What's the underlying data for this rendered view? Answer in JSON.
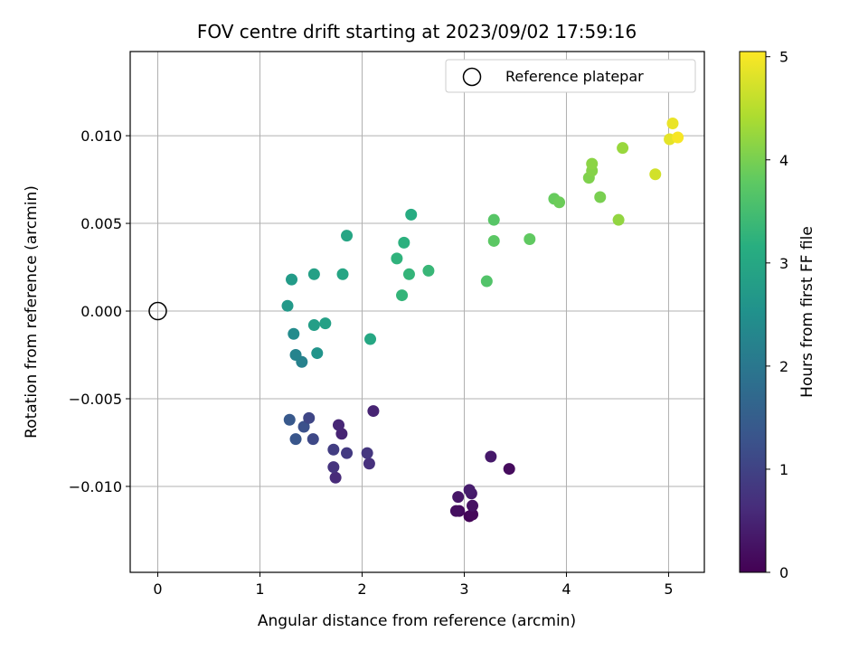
{
  "chart_data": {
    "type": "scatter",
    "title": "FOV centre drift starting at 2023/09/02 17:59:16",
    "xlabel": "Angular distance from reference (arcmin)",
    "ylabel": "Rotation from reference (arcmin)",
    "xlim": [
      -0.27,
      5.35
    ],
    "ylim": [
      -0.0149,
      0.0148
    ],
    "xticks": [
      0,
      1,
      2,
      3,
      4,
      5
    ],
    "xtick_labels": [
      "0",
      "1",
      "2",
      "3",
      "4",
      "5"
    ],
    "yticks": [
      -0.01,
      -0.005,
      0.0,
      0.005,
      0.01
    ],
    "ytick_labels": [
      "−0.010",
      "−0.005",
      "0.000",
      "0.005",
      "0.010"
    ],
    "grid": true,
    "legend": {
      "placement": "top-right",
      "entries": [
        {
          "label": "Reference platepar",
          "marker": "open-circle"
        }
      ]
    },
    "reference_point": {
      "x": 0.0,
      "y": 0.0
    },
    "colorbar": {
      "label": "Hours from first FF file",
      "colormap": "viridis",
      "min": 0,
      "max": 5.05,
      "ticks": [
        0,
        1,
        2,
        3,
        4,
        5
      ],
      "tick_labels": [
        "0",
        "1",
        "2",
        "3",
        "4",
        "5"
      ]
    },
    "points": [
      {
        "x": 3.05,
        "y": -0.0117,
        "t": 0.05
      },
      {
        "x": 3.08,
        "y": -0.0116,
        "t": 0.1
      },
      {
        "x": 2.95,
        "y": -0.0114,
        "t": 0.15
      },
      {
        "x": 2.92,
        "y": -0.0114,
        "t": 0.2
      },
      {
        "x": 3.08,
        "y": -0.0111,
        "t": 0.25
      },
      {
        "x": 2.94,
        "y": -0.0106,
        "t": 0.3
      },
      {
        "x": 3.07,
        "y": -0.0104,
        "t": 0.35
      },
      {
        "x": 3.05,
        "y": -0.0102,
        "t": 0.4
      },
      {
        "x": 3.44,
        "y": -0.009,
        "t": 0.15
      },
      {
        "x": 3.26,
        "y": -0.0083,
        "t": 0.35
      },
      {
        "x": 1.74,
        "y": -0.0095,
        "t": 0.6
      },
      {
        "x": 2.07,
        "y": -0.0087,
        "t": 0.7
      },
      {
        "x": 1.72,
        "y": -0.0089,
        "t": 0.75
      },
      {
        "x": 2.05,
        "y": -0.0081,
        "t": 0.8
      },
      {
        "x": 1.85,
        "y": -0.0081,
        "t": 0.85
      },
      {
        "x": 1.72,
        "y": -0.0079,
        "t": 0.9
      },
      {
        "x": 1.8,
        "y": -0.007,
        "t": 0.5
      },
      {
        "x": 1.77,
        "y": -0.0065,
        "t": 0.55
      },
      {
        "x": 2.11,
        "y": -0.0057,
        "t": 0.5
      },
      {
        "x": 1.52,
        "y": -0.0073,
        "t": 1.1
      },
      {
        "x": 1.35,
        "y": -0.0073,
        "t": 1.35
      },
      {
        "x": 1.43,
        "y": -0.0066,
        "t": 1.25
      },
      {
        "x": 1.48,
        "y": -0.0061,
        "t": 1.05
      },
      {
        "x": 1.29,
        "y": -0.0062,
        "t": 1.4
      },
      {
        "x": 1.41,
        "y": -0.0029,
        "t": 2.2
      },
      {
        "x": 1.35,
        "y": -0.0025,
        "t": 2.25
      },
      {
        "x": 1.56,
        "y": -0.0024,
        "t": 2.6
      },
      {
        "x": 1.33,
        "y": -0.0013,
        "t": 2.4
      },
      {
        "x": 1.53,
        "y": -0.0008,
        "t": 2.8
      },
      {
        "x": 1.64,
        "y": -0.0007,
        "t": 2.85
      },
      {
        "x": 2.08,
        "y": -0.0016,
        "t": 3.0
      },
      {
        "x": 1.27,
        "y": 0.0003,
        "t": 2.7
      },
      {
        "x": 1.31,
        "y": 0.0018,
        "t": 2.75
      },
      {
        "x": 1.53,
        "y": 0.0021,
        "t": 2.85
      },
      {
        "x": 1.81,
        "y": 0.0021,
        "t": 2.95
      },
      {
        "x": 1.85,
        "y": 0.0043,
        "t": 2.95
      },
      {
        "x": 2.48,
        "y": 0.0055,
        "t": 3.1
      },
      {
        "x": 2.41,
        "y": 0.0039,
        "t": 3.2
      },
      {
        "x": 2.34,
        "y": 0.003,
        "t": 3.25
      },
      {
        "x": 2.46,
        "y": 0.0021,
        "t": 3.3
      },
      {
        "x": 2.65,
        "y": 0.0023,
        "t": 3.35
      },
      {
        "x": 2.39,
        "y": 0.0009,
        "t": 3.3
      },
      {
        "x": 3.22,
        "y": 0.0017,
        "t": 3.65
      },
      {
        "x": 3.29,
        "y": 0.0052,
        "t": 3.7
      },
      {
        "x": 3.29,
        "y": 0.004,
        "t": 3.75
      },
      {
        "x": 3.64,
        "y": 0.0041,
        "t": 3.8
      },
      {
        "x": 3.88,
        "y": 0.0064,
        "t": 3.85
      },
      {
        "x": 3.93,
        "y": 0.0062,
        "t": 3.9
      },
      {
        "x": 4.33,
        "y": 0.0065,
        "t": 4.0
      },
      {
        "x": 4.22,
        "y": 0.0076,
        "t": 4.05
      },
      {
        "x": 4.25,
        "y": 0.008,
        "t": 4.1
      },
      {
        "x": 4.25,
        "y": 0.0084,
        "t": 4.15
      },
      {
        "x": 4.51,
        "y": 0.0052,
        "t": 4.2
      },
      {
        "x": 4.55,
        "y": 0.0093,
        "t": 4.25
      },
      {
        "x": 4.87,
        "y": 0.0078,
        "t": 4.7
      },
      {
        "x": 5.01,
        "y": 0.0098,
        "t": 4.85
      },
      {
        "x": 5.04,
        "y": 0.0107,
        "t": 4.9
      },
      {
        "x": 5.09,
        "y": 0.0099,
        "t": 5.0
      }
    ]
  }
}
